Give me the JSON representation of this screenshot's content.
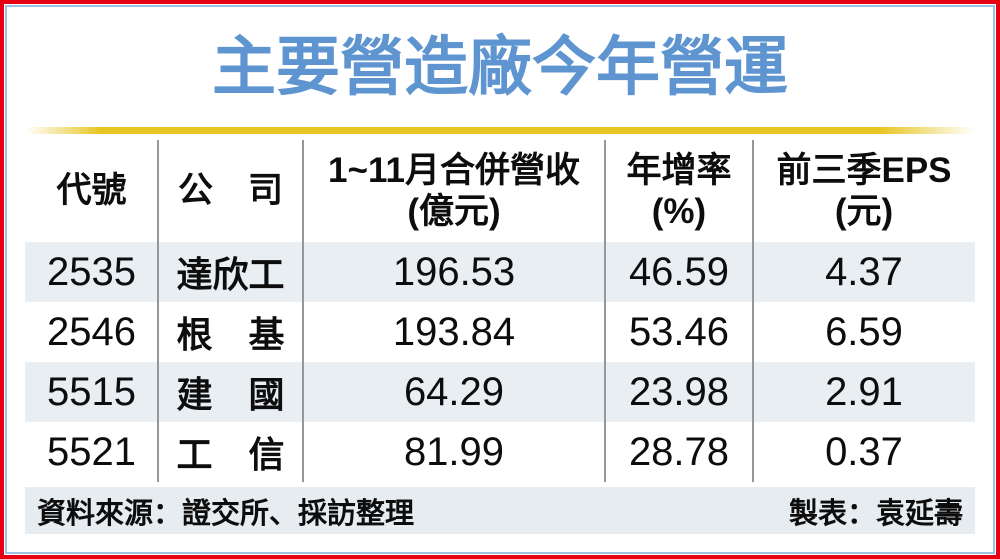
{
  "title": "主要營造廠今年營運",
  "colors": {
    "border_red": "#e60012",
    "border_blue": "#9dc3e2",
    "title_blue": "#5e95d0",
    "gold_rule": "#e7c623",
    "row_stripe": "#e9eef3",
    "footer_bg": "#e7ecf0",
    "grid_line": "#979797"
  },
  "table": {
    "columns": [
      {
        "label": "代號"
      },
      {
        "label": "公　司"
      },
      {
        "label": "1~11月合併營收",
        "unit": "(億元)"
      },
      {
        "label": "年增率",
        "unit": "(%)"
      },
      {
        "label": "前三季EPS",
        "unit": "(元)"
      }
    ],
    "rows": [
      [
        "2535",
        "達欣工",
        "196.53",
        "46.59",
        "4.37"
      ],
      [
        "2546",
        "根　基",
        "193.84",
        "53.46",
        "6.59"
      ],
      [
        "5515",
        "建　國",
        "64.29",
        "23.98",
        "2.91"
      ],
      [
        "5521",
        "工　信",
        "81.99",
        "28.78",
        "0.37"
      ]
    ]
  },
  "footer": {
    "source": "資料來源：證交所、採訪整理",
    "credit": "製表：袁延壽"
  },
  "chart_data": {
    "type": "table",
    "title": "主要營造廠今年營運",
    "columns": [
      "代號",
      "公司",
      "1~11月合併營收(億元)",
      "年增率(%)",
      "前三季EPS(元)"
    ],
    "rows": [
      {
        "code": "2535",
        "company": "達欣工",
        "revenue_jan_nov": 196.53,
        "yoy_growth_pct": 46.59,
        "eps_3q": 4.37
      },
      {
        "code": "2546",
        "company": "根基",
        "revenue_jan_nov": 193.84,
        "yoy_growth_pct": 53.46,
        "eps_3q": 6.59
      },
      {
        "code": "5515",
        "company": "建國",
        "revenue_jan_nov": 64.29,
        "yoy_growth_pct": 23.98,
        "eps_3q": 2.91
      },
      {
        "code": "5521",
        "company": "工信",
        "revenue_jan_nov": 81.99,
        "yoy_growth_pct": 28.78,
        "eps_3q": 0.37
      }
    ],
    "source": "證交所、採訪整理",
    "credit": "袁延壽"
  }
}
